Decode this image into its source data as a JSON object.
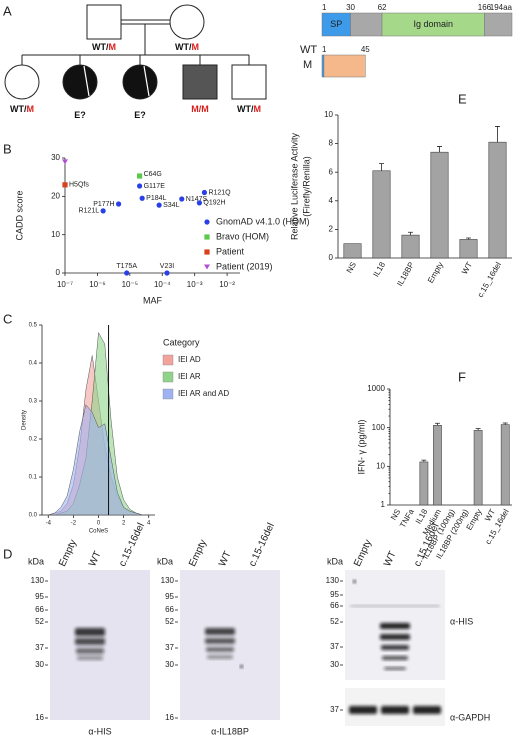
{
  "panel_labels": [
    "A",
    "B",
    "C",
    "D",
    "E",
    "F"
  ],
  "pedigree": {
    "parents": [
      {
        "genotype": [
          {
            "text": "WT/",
            "color": "#111"
          },
          {
            "text": "M",
            "color": "#d8201c"
          }
        ]
      },
      {
        "genotype": [
          {
            "text": "WT/",
            "color": "#111"
          },
          {
            "text": "M",
            "color": "#d8201c"
          }
        ]
      }
    ],
    "children": [
      {
        "genotype": [
          {
            "text": "WT/",
            "color": "#111"
          },
          {
            "text": "M",
            "color": "#d8201c"
          }
        ]
      },
      {
        "genotype": [
          {
            "text": "E?",
            "color": "#111"
          }
        ]
      },
      {
        "genotype": [
          {
            "text": "E?",
            "color": "#111"
          }
        ]
      },
      {
        "genotype": [
          {
            "text": "M/M",
            "color": "#d8201c"
          }
        ]
      },
      {
        "genotype": [
          {
            "text": "WT/",
            "color": "#111"
          },
          {
            "text": "M",
            "color": "#d8201c"
          }
        ]
      }
    ]
  },
  "protein": [
    {
      "name": "WT",
      "ticks": [
        1,
        30,
        62,
        166,
        {
          "value": 194,
          "label": "194aa"
        }
      ],
      "domains": [
        {
          "name": "SP",
          "start": 1,
          "end": 30,
          "color": "#3d9be9"
        },
        {
          "start": 30,
          "end": 62,
          "color": "#a8a8a8"
        },
        {
          "name": "Ig domain",
          "start": 62,
          "end": 166,
          "color": "#a6d88a"
        },
        {
          "start": 166,
          "end": 194,
          "color": "#a8a8a8"
        }
      ]
    },
    {
      "name": "M",
      "ticks": [
        1,
        45
      ],
      "domains": [
        {
          "start": 1,
          "end": 3,
          "color": "#3d9be9"
        },
        {
          "start": 3,
          "end": 45,
          "color": "#f5b88a"
        }
      ]
    }
  ],
  "chart_data": [
    {
      "type": "scatter",
      "xlabel": "MAF",
      "ylabel": "CADD score",
      "xscale": "log",
      "xlim": [
        1e-07,
        0.025
      ],
      "xticks": [
        {
          "value": 1e-07,
          "label": "10⁻⁷"
        },
        {
          "value": 1e-06,
          "label": "10⁻⁶"
        },
        {
          "value": 1e-05,
          "label": "10⁻⁵"
        },
        {
          "value": 0.0001,
          "label": "10⁻⁴"
        },
        {
          "value": 0.001,
          "label": "10⁻³"
        },
        {
          "value": 0.01,
          "label": "10⁻²"
        }
      ],
      "ylim": [
        0,
        30
      ],
      "yticks": [
        0,
        10,
        20,
        30
      ],
      "series": [
        {
          "name": "GnomAD v4.1.0 (HOM)",
          "color": "#2940e6",
          "marker": "circle",
          "x": [
            2e-05,
            2.4e-05,
            8e-05,
            0.0004,
            0.002,
            0.0014,
            4.5e-06,
            1.5e-06,
            8e-06,
            0.00014
          ],
          "values": [
            22.7,
            19.5,
            17.7,
            19.3,
            21,
            18.3,
            18,
            16.2,
            0,
            0
          ],
          "point_labels": [
            "G117E",
            "P184L",
            "S34L",
            "N147S",
            "R121Q",
            "Q192H",
            "P177H",
            "R121L",
            "T175A",
            "V23I"
          ]
        },
        {
          "name": "Bravo (HOM)",
          "color": "#5cc94a",
          "marker": "square",
          "x": [
            2e-05
          ],
          "values": [
            25.3
          ],
          "point_labels": [
            "C64G"
          ]
        },
        {
          "name": "Patient",
          "color": "#d9401c",
          "marker": "square",
          "x": [
            1e-07
          ],
          "values": [
            23
          ],
          "point_labels": [
            "H5Qfs"
          ]
        },
        {
          "name": "Patient (2019)",
          "color": "#b04fd0",
          "marker": "triangle",
          "x": [
            1e-07
          ],
          "values": [
            29
          ]
        }
      ]
    },
    {
      "type": "area",
      "xlabel": "CoNeS",
      "ylabel": "Density",
      "legend_title": "Category",
      "x": [
        -4,
        -3.5,
        -3,
        -2.5,
        -2,
        -1.5,
        -1,
        -0.5,
        0,
        0.5,
        1,
        1.5,
        2,
        2.5,
        3,
        3.5,
        4
      ],
      "xlim": [
        -4.5,
        4.5
      ],
      "xticks": [
        -4,
        -2,
        0,
        2,
        4
      ],
      "ylim": [
        0,
        0.5
      ],
      "yticks": [
        {
          "value": 0,
          "label": "0.0"
        },
        0.1,
        0.2,
        0.3,
        0.4,
        0.5
      ],
      "vline": 0.8,
      "series": [
        {
          "name": "IEI AD",
          "color": "#f2a49c",
          "values": [
            0,
            0.005,
            0.01,
            0.03,
            0.08,
            0.18,
            0.33,
            0.42,
            0.3,
            0.18,
            0.1,
            0.05,
            0.02,
            0.01,
            0.005,
            0,
            0
          ]
        },
        {
          "name": "IEI AR",
          "color": "#8fd48a",
          "values": [
            0,
            0,
            0.005,
            0.01,
            0.03,
            0.08,
            0.15,
            0.3,
            0.48,
            0.45,
            0.25,
            0.1,
            0.04,
            0.015,
            0.005,
            0,
            0
          ]
        },
        {
          "name": "IEI AR and AD",
          "color": "#9fb2f2",
          "values": [
            0,
            0.005,
            0.02,
            0.05,
            0.12,
            0.22,
            0.29,
            0.27,
            0.23,
            0.24,
            0.15,
            0.06,
            0.02,
            0.01,
            0.005,
            0,
            0
          ]
        }
      ]
    },
    {
      "type": "bar",
      "ylabel": [
        "Relative Luciferase Activity",
        "(Firefly/Renilla)"
      ],
      "color": "#a3a3a3",
      "categories": [
        "NS",
        "IL18",
        "IL18BP",
        "Empty",
        "WT",
        "c.15_16del"
      ],
      "values": [
        1,
        6.1,
        1.6,
        7.4,
        1.3,
        8.1
      ],
      "errors": [
        0,
        0.5,
        0.2,
        0.4,
        0.1,
        1.1
      ],
      "ylim": [
        0,
        10
      ],
      "yticks": [
        0,
        2,
        4,
        6,
        8,
        10
      ]
    },
    {
      "type": "bar",
      "ylabel": [
        "IFN- γ (pg/ml)"
      ],
      "yscale": "log",
      "color": "#a3a3a3",
      "categories": [
        "NS",
        "TNFa",
        "IL18",
        "Medium",
        "IL18BP (100ng)",
        "IL18BP (200ng)",
        "Empty",
        "WT",
        "c.15_16del"
      ],
      "values": [
        null,
        null,
        13,
        115,
        null,
        null,
        85,
        null,
        120
      ],
      "errors": [
        null,
        null,
        1.5,
        15,
        null,
        null,
        10,
        null,
        12
      ],
      "ylim": [
        1,
        1000
      ],
      "yticks": [
        1,
        10,
        100,
        1000
      ]
    }
  ],
  "blots": [
    {
      "kda": "kDa",
      "lanes": [
        "Empty",
        "WT",
        "c.15-16del"
      ],
      "markers": [
        "130",
        "95",
        "66",
        "52",
        "37",
        "30",
        "16"
      ],
      "antibody": "α-HIS"
    },
    {
      "kda": "kDa",
      "lanes": [
        "Empty",
        "WT",
        "c.15-16del"
      ],
      "markers": [
        "130",
        "95",
        "66",
        "52",
        "37",
        "30",
        "16"
      ],
      "antibody": "α-IL18BP"
    },
    {
      "kda": "kDa",
      "lanes": [
        "Empty",
        "WT",
        "c.15.16del"
      ],
      "markers": [
        "130",
        "95",
        "66",
        "52",
        "37",
        "30"
      ],
      "antibody": "α-HIS",
      "loading": {
        "markers": [
          "37"
        ],
        "antibody": "α-GAPDH"
      }
    }
  ]
}
